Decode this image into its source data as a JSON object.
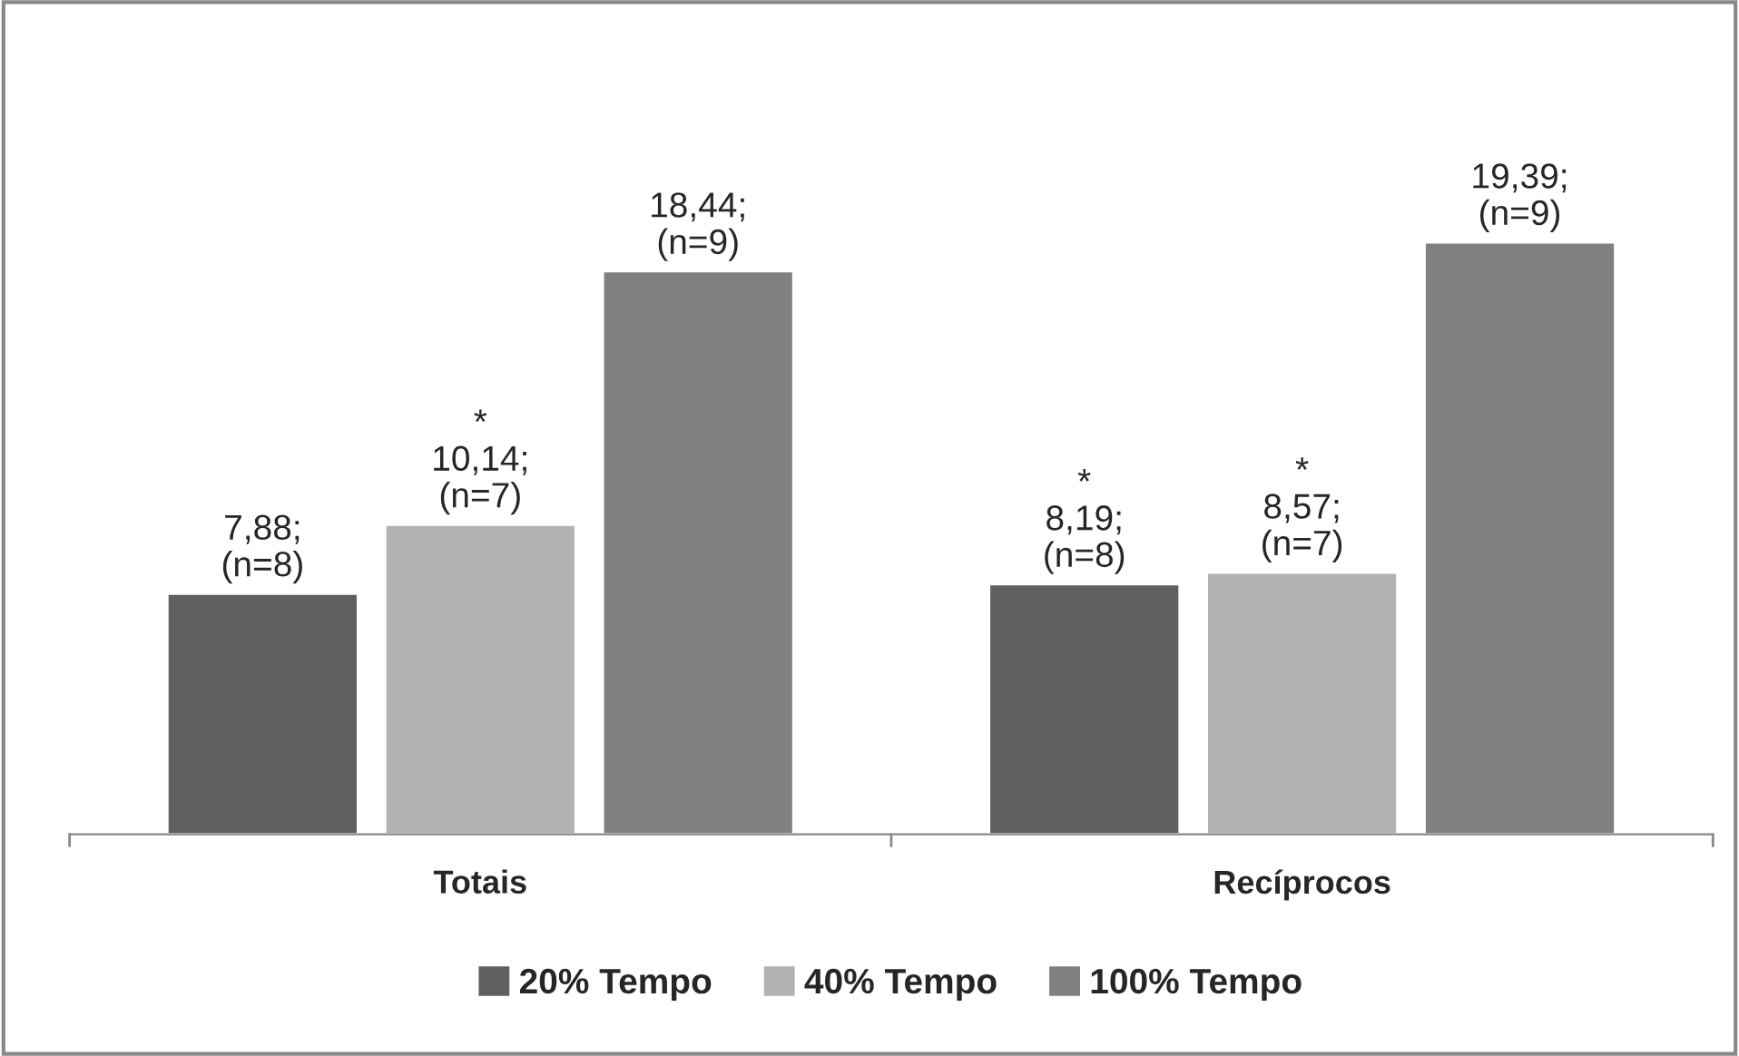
{
  "chart_data": {
    "type": "bar",
    "categories": [
      "Totais",
      "Recíprocos"
    ],
    "series": [
      {
        "name": "20% Tempo",
        "color": "#606060",
        "values": [
          7.88,
          8.19
        ],
        "value_labels": [
          "7,88;\n(n=8)",
          "*\n8,19;\n(n=8)"
        ]
      },
      {
        "name": "40% Tempo",
        "color": "#b2b2b2",
        "values": [
          10.14,
          8.57
        ],
        "value_labels": [
          "*\n10,14;\n(n=7)",
          "*\n8,57;\n(n=7)"
        ]
      },
      {
        "name": "100% Tempo",
        "color": "#808080",
        "values": [
          18.44,
          19.39
        ],
        "value_labels": [
          "18,44;\n(n=9)",
          "19,39;\n(n=9)"
        ]
      }
    ],
    "legend": "bottom"
  }
}
